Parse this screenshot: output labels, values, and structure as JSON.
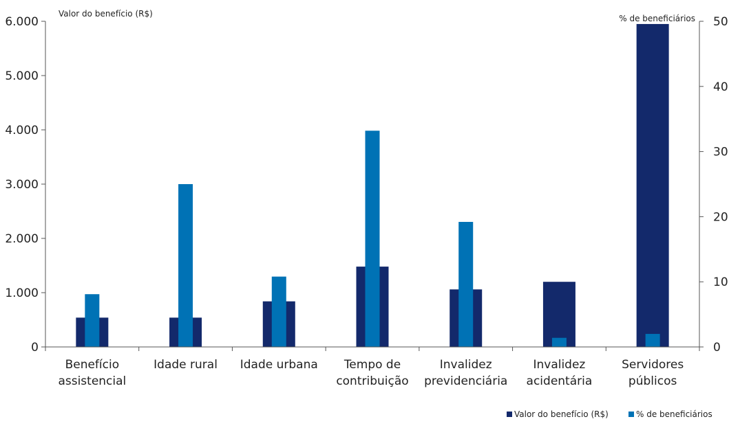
{
  "colors": {
    "value_series": "#13296B",
    "percent_series": "#0072B5",
    "axis": "#555555"
  },
  "chart_data": {
    "type": "bar",
    "categories": [
      [
        "Benefício",
        "assistencial"
      ],
      [
        "Idade rural"
      ],
      [
        "Idade urbana"
      ],
      [
        "Tempo de",
        "contribuição"
      ],
      [
        "Invalidez",
        "previdenciária"
      ],
      [
        "Invalidez",
        "acidentária"
      ],
      [
        "Servidores",
        "públicos"
      ]
    ],
    "series": [
      {
        "name": "Valor do benefício (R$)",
        "axis": "left",
        "values": [
          540,
          540,
          840,
          1480,
          1060,
          1200,
          5950
        ]
      },
      {
        "name": "% de beneficiários",
        "axis": "right",
        "values": [
          8.1,
          25.0,
          10.8,
          33.2,
          19.2,
          1.4,
          2.0
        ]
      }
    ],
    "y_left": {
      "label": "Valor do benefício (R$)",
      "range": [
        0,
        6000
      ],
      "ticks": [
        "0",
        "1.000",
        "2.000",
        "3.000",
        "4.000",
        "5.000",
        "6.000"
      ]
    },
    "y_right": {
      "label": "% de beneficiários",
      "range": [
        0,
        50
      ],
      "ticks": [
        "0",
        "10",
        "20",
        "30",
        "40",
        "50"
      ]
    },
    "grid": false,
    "legend_position": "bottom-right"
  }
}
